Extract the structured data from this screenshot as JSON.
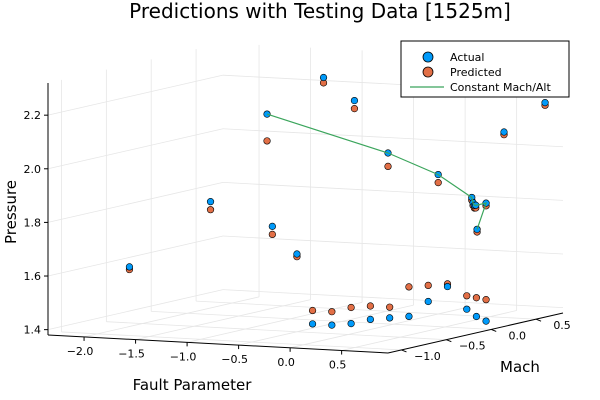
{
  "chart_data": {
    "type": "scatter",
    "title": "Predictions with Testing Data [1525m]",
    "xlabel": "Fault Parameter",
    "ylabel": "Mach",
    "zlabel": "Pressure",
    "xlim": [
      -2.35,
      0.95
    ],
    "ylim": [
      -1.15,
      0.8
    ],
    "zlim": [
      1.38,
      2.32
    ],
    "x_ticks": [
      -2.0,
      -1.5,
      -1.0,
      -0.5,
      0.0,
      0.5
    ],
    "x_tick_labels": [
      "−2.0",
      "−1.5",
      "−1.0",
      "−0.5",
      "0.0",
      "0.5"
    ],
    "y_ticks": [
      -1.0,
      -0.5,
      0.0,
      0.5
    ],
    "y_tick_labels": [
      "−1.0",
      "−0.5",
      "0.0",
      "0.5"
    ],
    "z_ticks": [
      1.4,
      1.6,
      1.8,
      2.0,
      2.2
    ],
    "z_tick_labels": [
      "1.4",
      "1.6",
      "1.8",
      "2.0",
      "2.2"
    ],
    "grid": true,
    "legend_position": "top-right",
    "series": [
      {
        "name": "Actual",
        "kind": "scatter",
        "color": "#009AFA",
        "points": [
          [
            -2.3,
            -0.3,
            1.57
          ],
          [
            -1.2,
            0.6,
            2.23
          ],
          [
            -1.6,
            -0.2,
            1.82
          ],
          [
            -1.4,
            0.2,
            2.12
          ],
          [
            -1.0,
            -0.2,
            1.74
          ],
          [
            -0.9,
            0.6,
            2.15
          ],
          [
            -0.4,
            0.4,
            1.98
          ],
          [
            -0.5,
            -0.5,
            1.67
          ],
          [
            0.0,
            0.5,
            1.9
          ],
          [
            0.5,
            0.3,
            1.84
          ],
          [
            0.6,
            0.2,
            1.83
          ],
          [
            0.7,
            0.1,
            1.83
          ],
          [
            0.8,
            0.0,
            1.84
          ],
          [
            0.9,
            0.0,
            1.85
          ],
          [
            0.9,
            0.2,
            2.1
          ],
          [
            0.9,
            -0.1,
            1.76
          ],
          [
            0.95,
            0.6,
            2.18
          ],
          [
            0.9,
            0.0,
            1.41
          ],
          [
            0.85,
            -0.05,
            1.43
          ],
          [
            0.8,
            -0.1,
            1.46
          ],
          [
            0.7,
            -0.2,
            1.55
          ],
          [
            0.6,
            -0.3,
            1.5
          ],
          [
            0.5,
            -0.4,
            1.45
          ],
          [
            0.4,
            -0.5,
            1.45
          ],
          [
            0.3,
            -0.6,
            1.45
          ],
          [
            0.2,
            -0.7,
            1.44
          ],
          [
            0.1,
            -0.8,
            1.44
          ],
          [
            0.0,
            -0.9,
            1.45
          ]
        ]
      },
      {
        "name": "Predicted",
        "kind": "scatter",
        "color": "#E26F46",
        "points": [
          [
            -2.3,
            -0.3,
            1.56
          ],
          [
            -1.2,
            0.6,
            2.21
          ],
          [
            -1.6,
            -0.2,
            1.79
          ],
          [
            -1.4,
            0.2,
            2.02
          ],
          [
            -1.0,
            -0.2,
            1.71
          ],
          [
            -0.9,
            0.6,
            2.12
          ],
          [
            -0.4,
            0.4,
            1.93
          ],
          [
            -0.5,
            -0.5,
            1.66
          ],
          [
            0.0,
            0.5,
            1.87
          ],
          [
            0.5,
            0.3,
            1.83
          ],
          [
            0.6,
            0.2,
            1.82
          ],
          [
            0.7,
            0.1,
            1.82
          ],
          [
            0.8,
            0.0,
            1.83
          ],
          [
            0.9,
            0.0,
            1.84
          ],
          [
            0.9,
            0.2,
            2.09
          ],
          [
            0.9,
            -0.1,
            1.75
          ],
          [
            0.95,
            0.6,
            2.17
          ],
          [
            0.9,
            0.0,
            1.49
          ],
          [
            0.85,
            -0.05,
            1.5
          ],
          [
            0.8,
            -0.1,
            1.51
          ],
          [
            0.7,
            -0.2,
            1.56
          ],
          [
            0.6,
            -0.3,
            1.56
          ],
          [
            0.5,
            -0.4,
            1.56
          ],
          [
            0.4,
            -0.5,
            1.49
          ],
          [
            0.3,
            -0.6,
            1.5
          ],
          [
            0.2,
            -0.7,
            1.5
          ],
          [
            0.1,
            -0.8,
            1.49
          ],
          [
            0.0,
            -0.9,
            1.5
          ]
        ]
      },
      {
        "name": "Constant Mach/Alt",
        "kind": "line",
        "color": "#3BA55C",
        "points": [
          [
            -1.4,
            0.2,
            2.12
          ],
          [
            -0.4,
            0.4,
            1.98
          ],
          [
            0.0,
            0.5,
            1.9
          ],
          [
            0.5,
            0.3,
            1.84
          ],
          [
            0.6,
            0.2,
            1.83
          ],
          [
            0.7,
            0.1,
            1.83
          ],
          [
            0.8,
            0.0,
            1.84
          ],
          [
            0.9,
            0.0,
            1.85
          ],
          [
            0.9,
            -0.1,
            1.76
          ]
        ]
      }
    ]
  }
}
